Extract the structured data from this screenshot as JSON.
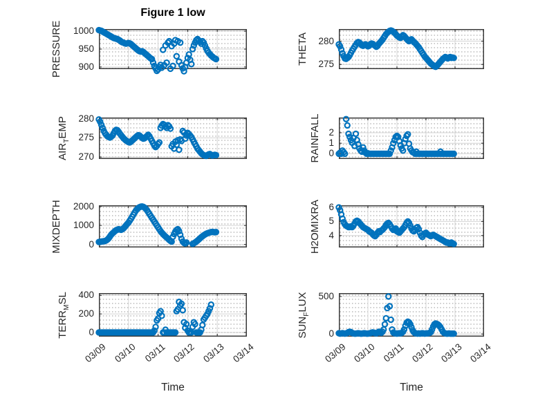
{
  "figure": {
    "title": "Figure 1 low",
    "background": "#ffffff"
  },
  "style": {
    "marker_color": "#0072BD",
    "axis_box_color": "#3a3a3a",
    "major_grid_color": "#d4d4d4",
    "minor_grid_dot_color": "#c9c9c9",
    "text_color": "#262626"
  },
  "x_axis": {
    "label": "Time",
    "tick_labels": [
      "03/09",
      "03/10",
      "03/11",
      "03/12",
      "03/13",
      "03/14"
    ],
    "xlim_days": [
      0,
      5
    ]
  },
  "chart_data": [
    {
      "type": "scatter",
      "name": "PRESSURE",
      "col": 0,
      "row": 0,
      "ylabel": {
        "pre": "PRESSURE",
        "sub": "",
        "post": ""
      },
      "ylim": [
        894,
        1006
      ],
      "yticks": [
        900,
        950,
        1000
      ],
      "x_start_days": 0,
      "dt_days": 0.0416667,
      "values": [
        1003,
        1002,
        1001,
        999,
        997,
        995,
        993,
        991,
        989,
        987,
        985,
        983,
        981,
        980,
        979,
        978,
        976,
        974,
        971,
        969,
        968,
        966,
        965,
        966,
        967,
        966,
        964,
        961,
        958,
        955,
        952,
        949,
        946,
        944,
        943,
        944,
        942,
        939,
        936,
        933,
        930,
        927,
        924,
        922,
        912,
        903,
        896,
        889,
        893,
        900,
        906,
        898,
        948,
        905,
        960,
        912,
        968,
        972,
        895,
        958,
        903,
        965,
        975,
        930,
        972,
        915,
        968,
        905,
        896,
        888,
        900,
        912,
        925,
        935,
        920,
        908,
        950,
        960,
        968,
        975,
        978,
        974,
        970,
        965,
        972,
        968,
        960,
        952,
        945,
        940,
        936,
        932,
        929,
        926,
        924,
        922
      ]
    },
    {
      "type": "scatter",
      "name": "THETA",
      "col": 1,
      "row": 0,
      "ylabel": {
        "pre": "THETA",
        "sub": "",
        "post": ""
      },
      "ylim": [
        274.0,
        282.6
      ],
      "yticks": [
        275,
        280
      ],
      "x_start_days": 0,
      "dt_days": 0.0416667,
      "values": [
        279.3,
        278.9,
        278.2,
        277.4,
        276.8,
        276.3,
        276.2,
        276.4,
        276.6,
        277.0,
        277.5,
        278.0,
        278.4,
        278.8,
        279.2,
        279.6,
        279.8,
        279.7,
        279.4,
        279.1,
        279.0,
        279.2,
        279.3,
        279.1,
        278.9,
        279.0,
        279.3,
        279.5,
        279.4,
        279.2,
        279.0,
        278.8,
        279.0,
        279.4,
        279.7,
        280.0,
        280.3,
        280.7,
        281.1,
        281.5,
        281.8,
        282.0,
        282.2,
        282.3,
        282.2,
        282.0,
        281.8,
        281.5,
        281.2,
        281.0,
        280.8,
        280.7,
        281.0,
        281.3,
        281.1,
        280.8,
        280.5,
        280.2,
        280.0,
        280.2,
        280.4,
        280.1,
        279.8,
        279.6,
        279.3,
        279.0,
        278.7,
        278.3,
        277.9,
        277.5,
        277.1,
        276.7,
        276.4,
        276.1,
        275.8,
        275.5,
        275.2,
        275.0,
        274.8,
        274.6,
        274.5,
        274.7,
        275.0,
        275.3,
        275.6,
        275.9,
        276.2,
        276.4,
        276.6,
        276.5,
        276.3,
        276.5,
        276.6,
        276.4,
        276.5,
        276.4
      ]
    },
    {
      "type": "scatter",
      "name": "AIR_TEMP",
      "col": 0,
      "row": 1,
      "ylabel": {
        "pre": "AIR",
        "sub": "T",
        "post": "EMP"
      },
      "ylim": [
        269.5,
        280.3
      ],
      "yticks": [
        270,
        275,
        280
      ],
      "x_start_days": 0,
      "dt_days": 0.0416667,
      "values": [
        279.8,
        279.2,
        278.4,
        277.6,
        276.8,
        276.2,
        275.8,
        275.4,
        275.2,
        275.1,
        275.3,
        275.6,
        276.2,
        276.8,
        277.1,
        277.0,
        276.6,
        276.1,
        275.7,
        275.3,
        274.9,
        274.6,
        274.3,
        274.1,
        273.9,
        273.8,
        274.0,
        274.3,
        274.6,
        274.9,
        275.2,
        275.5,
        275.7,
        275.6,
        275.3,
        275.0,
        274.8,
        274.9,
        275.2,
        275.5,
        275.8,
        275.4,
        274.8,
        274.2,
        273.6,
        273.0,
        272.6,
        272.9,
        273.4,
        273.8,
        277.6,
        278.2,
        278.6,
        278.4,
        278.0,
        277.6,
        278.3,
        278.0,
        277.4,
        272.8,
        273.4,
        272.2,
        274.0,
        273.2,
        274.4,
        271.9,
        274.6,
        274.2,
        276.8,
        276.4,
        274.8,
        275.6,
        276.3,
        276.0,
        275.6,
        275.2,
        274.6,
        274.0,
        273.4,
        272.8,
        272.2,
        271.8,
        271.4,
        271.0,
        270.7,
        270.5,
        270.4,
        270.3,
        270.5,
        270.7,
        270.8,
        270.6,
        270.4,
        270.5,
        270.6,
        270.5
      ]
    },
    {
      "type": "scatter",
      "name": "RAINFALL",
      "col": 1,
      "row": 1,
      "ylabel": {
        "pre": "RAINFALL",
        "sub": "",
        "post": ""
      },
      "ylim": [
        -0.5,
        3.45
      ],
      "yticks": [
        0,
        1,
        2
      ],
      "x_start_days": 0,
      "dt_days": 0.0416667,
      "values": [
        0,
        0.1,
        0,
        0.3,
        0.15,
        0,
        3.3,
        2.7,
        1.9,
        1.6,
        1.3,
        1.05,
        1.5,
        0.75,
        1.9,
        1.3,
        0.9,
        0.5,
        0.3,
        0.2,
        0.6,
        0.3,
        0.1,
        0,
        0.05,
        0,
        0,
        0,
        0,
        0,
        0,
        0,
        0,
        0,
        0,
        0,
        0,
        0,
        0,
        0,
        0,
        0,
        0,
        0.3,
        0.6,
        1.0,
        1.3,
        1.6,
        1.7,
        1.6,
        1.2,
        0.8,
        0.5,
        0.3,
        1.0,
        1.4,
        1.7,
        1.85,
        0.95,
        0.5,
        0.3,
        0.15,
        0.1,
        0,
        0.2,
        0,
        0,
        0,
        0,
        0,
        0,
        0,
        0,
        0,
        0,
        0,
        0,
        0,
        0,
        0,
        0,
        0,
        0,
        0,
        0.2,
        0,
        0,
        0,
        0,
        0,
        0,
        0,
        0,
        0,
        0,
        0
      ]
    },
    {
      "type": "scatter",
      "name": "MIXDEPTH",
      "col": 0,
      "row": 2,
      "ylabel": {
        "pre": "MIXDEPTH",
        "sub": "",
        "post": ""
      },
      "ylim": [
        -160,
        2060
      ],
      "yticks": [
        0,
        1000,
        2000
      ],
      "x_start_days": 0,
      "dt_days": 0.0416667,
      "values": [
        130,
        140,
        150,
        160,
        170,
        185,
        210,
        260,
        330,
        420,
        510,
        580,
        640,
        700,
        750,
        780,
        800,
        790,
        770,
        800,
        850,
        920,
        1000,
        1080,
        1150,
        1250,
        1350,
        1460,
        1570,
        1680,
        1780,
        1860,
        1920,
        1960,
        1990,
        2000,
        1980,
        1940,
        1880,
        1800,
        1700,
        1600,
        1500,
        1400,
        1300,
        1200,
        1100,
        1000,
        900,
        800,
        700,
        620,
        550,
        480,
        420,
        360,
        300,
        240,
        190,
        150,
        400,
        550,
        680,
        760,
        800,
        700,
        500,
        300,
        150,
        80,
        50,
        100,
        null,
        null,
        null,
        null,
        30,
        60,
        100,
        150,
        200,
        260,
        320,
        380,
        430,
        480,
        520,
        560,
        590,
        610,
        630,
        650,
        660,
        650,
        640,
        650
      ]
    },
    {
      "type": "scatter",
      "name": "H2OMIXRA",
      "col": 1,
      "row": 2,
      "ylabel": {
        "pre": "H2OMIXRA",
        "sub": "",
        "post": ""
      },
      "ylim": [
        3.15,
        6.15
      ],
      "yticks": [
        4,
        5,
        6
      ],
      "x_start_days": 0,
      "dt_days": 0.0416667,
      "values": [
        6.0,
        5.8,
        5.5,
        5.2,
        4.95,
        4.8,
        4.7,
        4.65,
        4.6,
        4.6,
        4.65,
        4.6,
        4.7,
        4.85,
        5.0,
        5.05,
        5.0,
        4.9,
        4.8,
        4.7,
        4.6,
        4.55,
        4.5,
        4.45,
        4.4,
        4.3,
        4.25,
        4.2,
        4.1,
        4.0,
        3.95,
        4.05,
        4.2,
        4.3,
        4.25,
        4.35,
        4.4,
        4.5,
        4.6,
        4.75,
        4.85,
        4.9,
        4.8,
        4.65,
        4.5,
        4.4,
        4.45,
        4.5,
        4.3,
        4.25,
        4.2,
        4.3,
        4.4,
        4.5,
        4.6,
        4.75,
        4.9,
        5.0,
        4.9,
        4.7,
        4.5,
        4.35,
        4.3,
        4.4,
        4.55,
        4.6,
        4.45,
        4.2,
        4.0,
        3.9,
        4.05,
        4.15,
        4.2,
        4.1,
        4.05,
        4.0,
        3.95,
        4.0,
        4.05,
        4.0,
        3.95,
        3.9,
        3.85,
        3.8,
        3.75,
        3.7,
        3.65,
        3.6,
        3.55,
        3.5,
        3.5,
        3.45,
        3.45,
        3.5,
        3.45,
        3.4
      ]
    },
    {
      "type": "scatter",
      "name": "TERR_MSL",
      "col": 0,
      "row": 3,
      "ylabel": {
        "pre": "TERR",
        "sub": "M",
        "post": "SL"
      },
      "ylim": [
        -45,
        425
      ],
      "yticks": [
        0,
        200,
        400
      ],
      "x_start_days": 0,
      "dt_days": 0.0416667,
      "values": [
        0,
        0,
        0,
        0,
        0,
        0,
        0,
        0,
        0,
        0,
        0,
        0,
        0,
        0,
        0,
        0,
        0,
        0,
        0,
        0,
        0,
        0,
        0,
        0,
        0,
        0,
        0,
        0,
        0,
        0,
        0,
        0,
        0,
        0,
        0,
        0,
        0,
        0,
        0,
        0,
        0,
        0,
        0,
        0,
        0,
        20,
        60,
        130,
        150,
        210,
        230,
        180,
        0,
        0,
        30,
        0,
        0,
        0,
        0,
        0,
        0,
        0,
        0,
        230,
        250,
        330,
        290,
        310,
        240,
        110,
        50,
        90,
        20,
        0,
        0,
        0,
        60,
        110,
        90,
        0,
        0,
        0,
        0,
        30,
        80,
        140,
        160,
        180,
        200,
        230,
        260,
        300,
        null,
        null,
        null,
        null
      ]
    },
    {
      "type": "scatter",
      "name": "SUN_FLUX",
      "col": 1,
      "row": 3,
      "ylabel": {
        "pre": "SUN",
        "sub": "F",
        "post": "LUX"
      },
      "ylim": [
        -35,
        545
      ],
      "yticks": [
        0,
        500
      ],
      "x_start_days": 0,
      "dt_days": 0.0416667,
      "values": [
        10,
        5,
        8,
        12,
        8,
        5,
        8,
        15,
        25,
        30,
        25,
        15,
        8,
        5,
        5,
        8,
        10,
        8,
        5,
        5,
        8,
        10,
        8,
        5,
        5,
        8,
        12,
        18,
        22,
        18,
        12,
        8,
        20,
        30,
        25,
        15,
        30,
        60,
        130,
        210,
        345,
        500,
        370,
        190,
        60,
        20,
        10,
        8,
        5,
        8,
        10,
        8,
        15,
        30,
        60,
        110,
        150,
        165,
        155,
        130,
        90,
        50,
        25,
        12,
        8,
        5,
        8,
        5,
        8,
        10,
        8,
        5,
        8,
        8,
        10,
        15,
        25,
        60,
        100,
        130,
        140,
        135,
        125,
        110,
        90,
        60,
        30,
        15,
        8,
        5,
        5,
        8,
        5,
        5,
        5,
        5
      ]
    }
  ]
}
